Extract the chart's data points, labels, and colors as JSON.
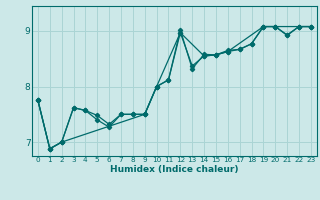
{
  "xlabel": "Humidex (Indice chaleur)",
  "bg_color": "#cce8e8",
  "line_color": "#006b6b",
  "grid_color": "#aad4d4",
  "spine_color": "#006b6b",
  "xlim": [
    -0.5,
    23.5
  ],
  "ylim": [
    6.75,
    9.45
  ],
  "yticks": [
    7,
    8,
    9
  ],
  "xticks": [
    0,
    1,
    2,
    3,
    4,
    5,
    6,
    7,
    8,
    9,
    10,
    11,
    12,
    13,
    14,
    15,
    16,
    17,
    18,
    19,
    20,
    21,
    22,
    23
  ],
  "series1": [
    [
      0,
      7.75
    ],
    [
      1,
      6.88
    ],
    [
      2,
      7.0
    ],
    [
      3,
      7.62
    ],
    [
      4,
      7.57
    ],
    [
      5,
      7.48
    ],
    [
      6,
      7.32
    ],
    [
      7,
      7.5
    ],
    [
      8,
      7.5
    ],
    [
      9,
      7.5
    ],
    [
      10,
      8.0
    ],
    [
      11,
      8.12
    ],
    [
      12,
      8.97
    ],
    [
      13,
      8.37
    ],
    [
      14,
      8.55
    ],
    [
      15,
      8.57
    ],
    [
      16,
      8.65
    ],
    [
      17,
      8.67
    ],
    [
      18,
      8.77
    ],
    [
      19,
      9.08
    ],
    [
      20,
      9.08
    ],
    [
      21,
      8.92
    ],
    [
      22,
      9.08
    ],
    [
      23,
      9.08
    ]
  ],
  "series2": [
    [
      0,
      7.75
    ],
    [
      1,
      6.88
    ],
    [
      2,
      7.0
    ],
    [
      3,
      7.62
    ],
    [
      4,
      7.57
    ],
    [
      5,
      7.4
    ],
    [
      6,
      7.27
    ],
    [
      7,
      7.5
    ],
    [
      8,
      7.5
    ],
    [
      9,
      7.5
    ],
    [
      10,
      8.0
    ],
    [
      11,
      8.12
    ],
    [
      12,
      9.02
    ],
    [
      13,
      8.32
    ],
    [
      14,
      8.58
    ],
    [
      15,
      8.57
    ],
    [
      16,
      8.63
    ],
    [
      17,
      8.67
    ],
    [
      18,
      8.77
    ],
    [
      19,
      9.08
    ],
    [
      20,
      9.08
    ],
    [
      21,
      8.93
    ],
    [
      22,
      9.08
    ],
    [
      23,
      9.08
    ]
  ],
  "series3": [
    [
      0,
      7.75
    ],
    [
      1,
      6.88
    ],
    [
      2,
      7.0
    ],
    [
      9,
      7.5
    ],
    [
      10,
      8.0
    ],
    [
      12,
      8.97
    ],
    [
      14,
      8.55
    ],
    [
      15,
      8.57
    ],
    [
      16,
      8.63
    ],
    [
      19,
      9.08
    ],
    [
      20,
      9.08
    ],
    [
      22,
      9.08
    ],
    [
      23,
      9.08
    ]
  ]
}
